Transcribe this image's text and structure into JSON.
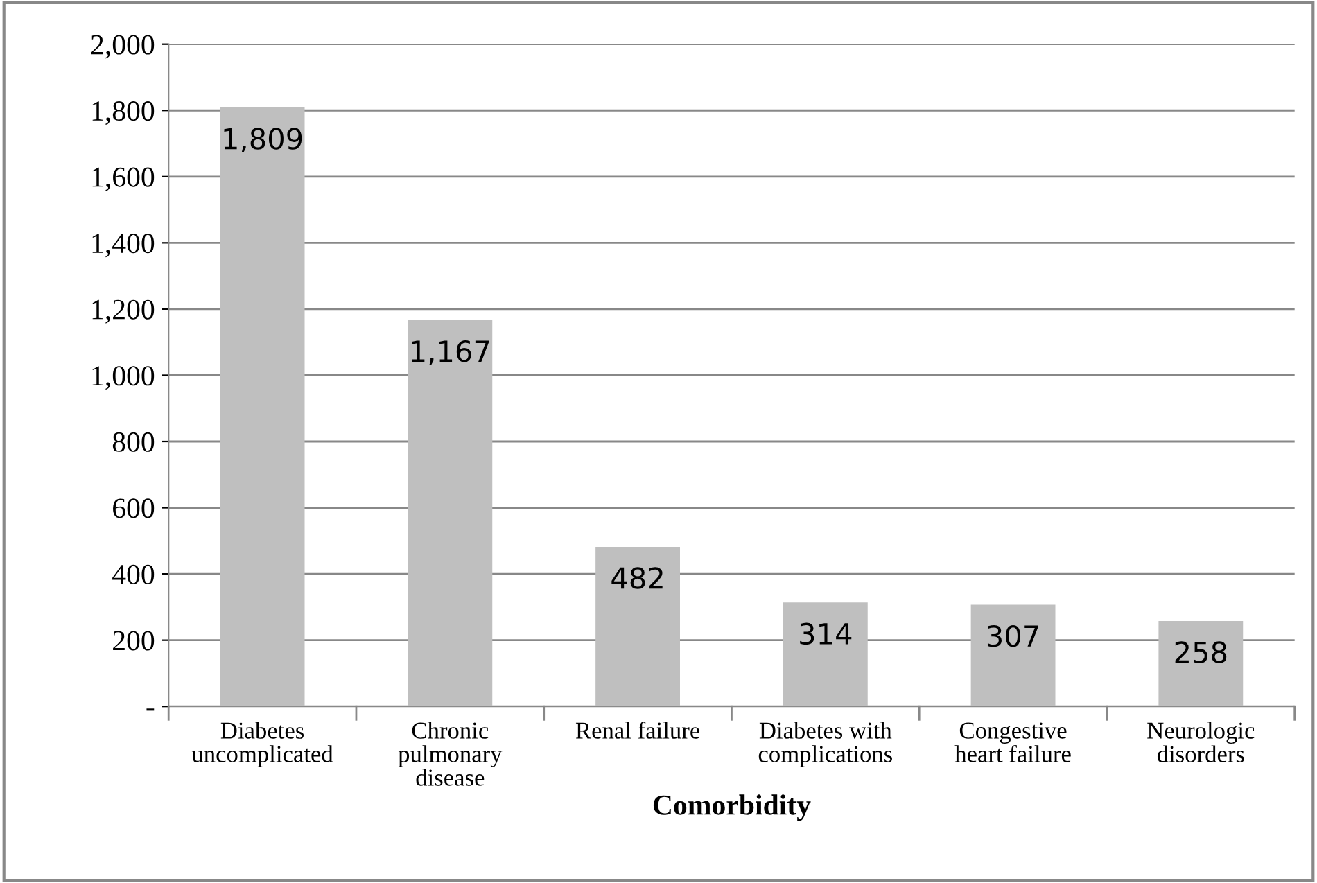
{
  "chart_data": {
    "type": "bar",
    "xlabel": "Comorbidity",
    "categories": [
      "Diabetes uncomplicated",
      "Chronic pulmonary disease",
      "Renal failure",
      "Diabetes with complications",
      "Congestive heart failure",
      "Neurologic disorders"
    ],
    "values": [
      1809,
      1167,
      482,
      314,
      307,
      258
    ],
    "value_labels": [
      "1,809",
      "1,167",
      "482",
      "314",
      "307",
      "258"
    ],
    "color": "#bfbfbf",
    "ylim": [
      0,
      2000
    ],
    "yticks": [
      {
        "value": 0,
        "label": "-"
      },
      {
        "value": 200,
        "label": "200"
      },
      {
        "value": 400,
        "label": "400"
      },
      {
        "value": 600,
        "label": "600"
      },
      {
        "value": 800,
        "label": "800"
      },
      {
        "value": 1000,
        "label": "1,000"
      },
      {
        "value": 1200,
        "label": "1,200"
      },
      {
        "value": 1400,
        "label": "1,400"
      },
      {
        "value": 1600,
        "label": "1,600"
      },
      {
        "value": 1800,
        "label": "1,800"
      },
      {
        "value": 2000,
        "label": "2,000"
      }
    ],
    "grid": "y",
    "legend": false
  }
}
